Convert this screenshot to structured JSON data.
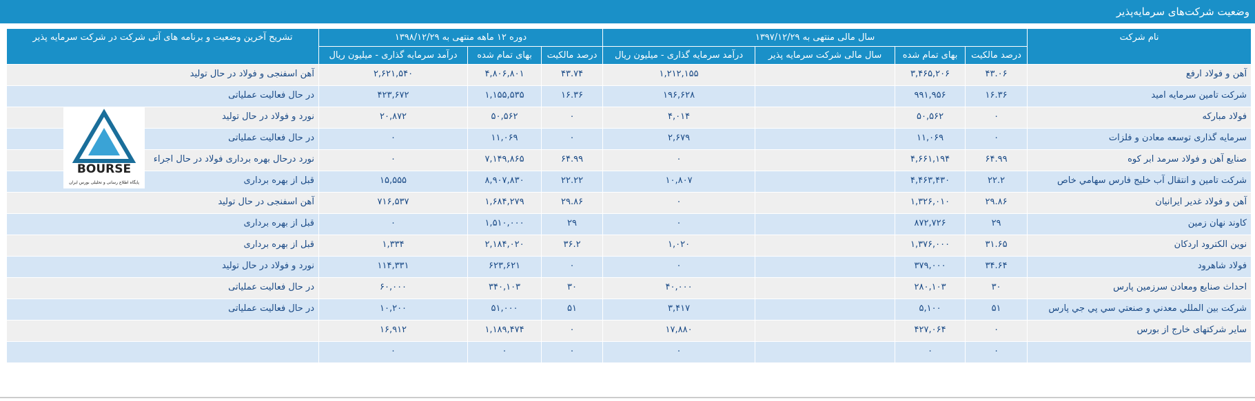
{
  "header": {
    "title": "وضعیت شرکت‌های سرمایه‌پذیر"
  },
  "table": {
    "columns": {
      "name": "نام شرکت",
      "fy1397": {
        "title": "سال مالی منتهی به ۱۳۹۷/۱۲/۲۹",
        "ownership": "درصد مالکیت",
        "cost": "بهای تمام شده",
        "fiscal_year": "سال مالی شرکت سرمایه پذیر",
        "income": "درآمد سرمایه گذاری - میلیون ریال"
      },
      "period1398": {
        "title": "دوره ۱۲ ماهه منتهی به ۱۳۹۸/۱۲/۲۹",
        "ownership": "درصد مالکیت",
        "cost": "بهای تمام شده",
        "income": "درآمد سرمایه گذاری - میلیون ریال"
      },
      "description": "تشریح آخرین وضعیت و برنامه های آتی شرکت در شرکت سرمایه پذیر"
    },
    "rows": [
      [
        "آهن و فولاد ارفع",
        "۴۳.۰۶",
        "۳,۴۶۵,۲۰۶",
        null,
        "۱,۲۱۲,۱۵۵",
        "۴۳.۷۴",
        "۴,۸۰۶,۸۰۱",
        "۲,۶۲۱,۵۴۰",
        "آهن اسفنجی و فولاد در حال تولید"
      ],
      [
        "شرکت تامین سرمایه امید",
        "۱۶.۳۶",
        "۹۹۱,۹۵۶",
        null,
        "۱۹۶,۶۲۸",
        "۱۶.۳۶",
        "۱,۱۵۵,۵۳۵",
        "۴۲۳,۶۷۲",
        "در حال فعالیت عملیاتی"
      ],
      [
        "فولاد مبارکه",
        "۰",
        "۵۰,۵۶۲",
        null,
        "۴,۰۱۴",
        "۰",
        "۵۰,۵۶۲",
        "۲۰,۸۷۲",
        "نورد و فولاد در حال تولید"
      ],
      [
        "سرمایه گذاری توسعه معادن و فلزات",
        "۰",
        "۱۱,۰۶۹",
        null,
        "۲,۶۷۹",
        "۰",
        "۱۱,۰۶۹",
        "۰",
        "در حال فعالیت عملیاتی"
      ],
      [
        "صنایع آهن و فولاد سرمد ابر کوه",
        "۶۴.۹۹",
        "۴,۶۶۱,۱۹۴",
        null,
        "۰",
        "۶۴.۹۹",
        "۷,۱۴۹,۸۶۵",
        "۰",
        "نورد درحال بهره برداری فولاد در حال اجراء"
      ],
      [
        "شرکت تامین و انتقال آب خلیج فارس سهامي خاص",
        "۲۲.۲",
        "۴,۴۶۳,۴۳۰",
        null,
        "۱۰,۸۰۷",
        "۲۲.۲۲",
        "۸,۹۰۷,۸۳۰",
        "۱۵,۵۵۵",
        "قبل از بهره برداری"
      ],
      [
        "آهن و فولاد غدیر ایرانیان",
        "۲۹.۸۶",
        "۱,۳۲۶,۰۱۰",
        null,
        "۰",
        "۲۹.۸۶",
        "۱,۶۸۴,۲۷۹",
        "۷۱۶,۵۳۷",
        "آهن اسفنجی در حال تولید"
      ],
      [
        "کاوند نهان زمین",
        "۲۹",
        "۸۷۲,۷۲۶",
        null,
        "۰",
        "۲۹",
        "۱,۵۱۰,۰۰۰",
        "۰",
        "قبل از بهره برداری"
      ],
      [
        "نوین الکترود اردکان",
        "۳۱.۶۵",
        "۱,۳۷۶,۰۰۰",
        null,
        "۱,۰۲۰",
        "۳۶.۲",
        "۲,۱۸۴,۰۲۰",
        "۱,۳۳۴",
        "قبل از بهره برداری"
      ],
      [
        "فولاد شاهرود",
        "۳۴.۶۴",
        "۳۷۹,۰۰۰",
        null,
        "۰",
        "۰",
        "۶۲۳,۶۲۱",
        "۱۱۴,۳۳۱",
        "نورد و فولاد در حال تولید"
      ],
      [
        "احداث صنایع ومعادن سرزمین پارس",
        "۳۰",
        "۲۸۰,۱۰۳",
        null,
        "۴۰,۰۰۰",
        "۳۰",
        "۳۴۰,۱۰۳",
        "۶۰,۰۰۰",
        "در حال فعالیت عملیاتی"
      ],
      [
        "شرکت بین المللي معدني و صنعتي سي پي جي پارس",
        "۵۱",
        "۵,۱۰۰",
        null,
        "۳,۴۱۷",
        "۵۱",
        "۵۱,۰۰۰",
        "۱۰,۲۰۰",
        "در حال فعالیت عملیاتی"
      ],
      [
        "سایر شرکتهای خارج از بورس",
        "۰",
        "۴۲۷,۰۶۴",
        null,
        "۱۷,۸۸۰",
        "۰",
        "۱,۱۸۹,۴۷۴",
        "۱۶,۹۱۲",
        null
      ],
      [
        null,
        "۰",
        "۰",
        null,
        "۰",
        "۰",
        "۰",
        "۰",
        null
      ]
    ]
  },
  "logo": {
    "text": "BOURSE",
    "caption": "پایگاه اطلاع رسانی و تحلیلی بورس ایران"
  }
}
